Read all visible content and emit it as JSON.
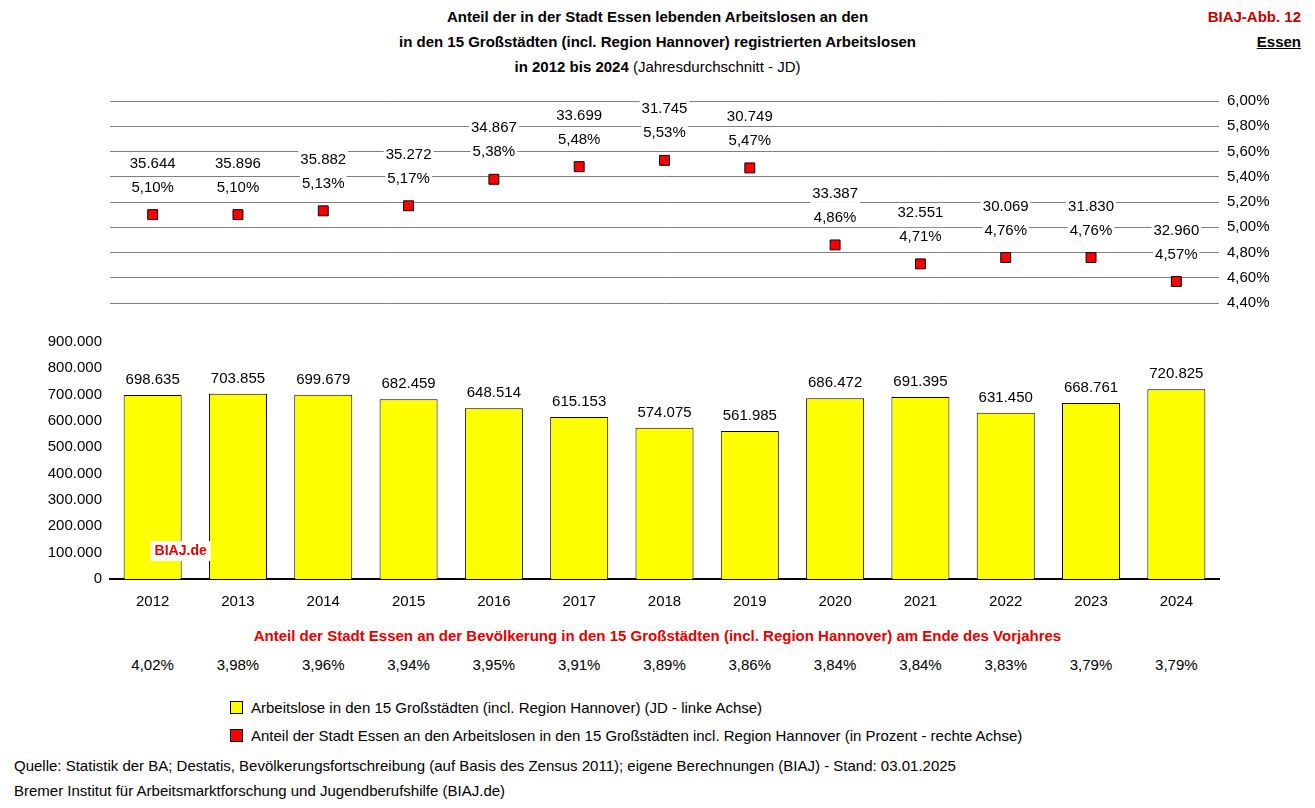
{
  "chart_data": {
    "type": "bar",
    "title": [
      "Anteil der in der Stadt Essen lebenden Arbeitslosen an den",
      "in den 15 Großstädten (incl. Region Hannover) registrierten Arbeitslosen",
      "in 2012 bis 2024"
    ],
    "subtitle": "(Jahresdurchschnitt - JD)",
    "figure_label": "BIAJ-Abb. 12",
    "figure_city": "Essen",
    "categories": [
      "2012",
      "2013",
      "2014",
      "2015",
      "2016",
      "2017",
      "2018",
      "2019",
      "2020",
      "2021",
      "2022",
      "2023",
      "2024"
    ],
    "series": [
      {
        "name": "Arbeitslose in den 15 Großstädten (incl. Region Hannover) (JD - linke Achse)",
        "type": "bar",
        "color": "#ffff00",
        "values": [
          698635,
          703855,
          699679,
          682459,
          648514,
          615153,
          574075,
          561985,
          686472,
          691395,
          631450,
          668761,
          720825
        ],
        "value_labels": [
          "698.635",
          "703.855",
          "699.679",
          "682.459",
          "648.514",
          "615.153",
          "574.075",
          "561.985",
          "686.472",
          "691.395",
          "631.450",
          "668.761",
          "720.825"
        ]
      },
      {
        "name": "Anteil der Stadt Essen an den Arbeitslosen in den 15 Großstädten incl. Region Hannover (in Prozent - rechte Achse)",
        "type": "line",
        "axis": "y2",
        "color": "#ff0000",
        "marker": "square",
        "line_style": "none",
        "values": [
          5.1,
          5.1,
          5.13,
          5.17,
          5.38,
          5.48,
          5.53,
          5.47,
          4.86,
          4.71,
          4.76,
          4.76,
          4.57
        ],
        "value_labels": [
          "5,10%",
          "5,10%",
          "5,13%",
          "5,17%",
          "5,38%",
          "5,48%",
          "5,53%",
          "5,47%",
          "4,86%",
          "4,71%",
          "4,76%",
          "4,76%",
          "4,57%"
        ]
      }
    ],
    "essen_unemployed": {
      "values": [
        35644,
        35896,
        35882,
        35272,
        34867,
        33699,
        31745,
        30749,
        33387,
        32551,
        30069,
        31830,
        32960
      ],
      "value_labels": [
        "35.644",
        "35.896",
        "35.882",
        "35.272",
        "34.867",
        "33.699",
        "31.745",
        "30.749",
        "33.387",
        "32.551",
        "30.069",
        "31.830",
        "32.960"
      ]
    },
    "population_share": {
      "title": "Anteil der Stadt Essen an der Bevölkerung in den 15 Großstädten (incl. Region Hannover) am Ende des Vorjahres",
      "values": [
        4.02,
        3.98,
        3.96,
        3.94,
        3.95,
        3.91,
        3.89,
        3.86,
        3.84,
        3.84,
        3.83,
        3.79,
        3.79
      ],
      "value_labels": [
        "4,02%",
        "3,98%",
        "3,96%",
        "3,94%",
        "3,95%",
        "3,91%",
        "3,89%",
        "3,86%",
        "3,84%",
        "3,84%",
        "3,83%",
        "3,79%",
        "3,79%"
      ]
    },
    "ylim": [
      0,
      900000
    ],
    "yticks": [
      0,
      {
        "value": 100000,
        "label": "100.000"
      },
      {
        "value": 200000,
        "label": "200.000"
      },
      {
        "value": 300000,
        "label": "300.000"
      },
      {
        "value": 400000,
        "label": "400.000"
      },
      {
        "value": 500000,
        "label": "500.000"
      },
      {
        "value": 600000,
        "label": "600.000"
      },
      {
        "value": 700000,
        "label": "700.000"
      },
      {
        "value": 800000,
        "label": "800.000"
      },
      {
        "value": 900000,
        "label": "900.000"
      }
    ],
    "y2lim": [
      4.4,
      6.0
    ],
    "y2ticks": [
      {
        "value": 4.4,
        "label": "4,40%"
      },
      {
        "value": 4.6,
        "label": "4,60%"
      },
      {
        "value": 4.8,
        "label": "4,80%"
      },
      {
        "value": 5.0,
        "label": "5,00%"
      },
      {
        "value": 5.2,
        "label": "5,20%"
      },
      {
        "value": 5.4,
        "label": "5,40%"
      },
      {
        "value": 5.6,
        "label": "5,60%"
      },
      {
        "value": 5.8,
        "label": "5,80%"
      },
      {
        "value": 6.0,
        "label": "6,00%"
      }
    ],
    "grid": true,
    "legend": "bottom",
    "data_labels": true,
    "watermark": "BIAJ.de",
    "source": [
      "Quelle: Statistik der BA; Destatis, Bevölkerungsfortschreibung (auf Basis des Zensus 2011); eigene Berechnungen (BIAJ) - Stand: 03.01.2025",
      "Bremer Institut für Arbeitsmarktforschung und Jugendberufshilfe (BIAJ.de)"
    ]
  }
}
